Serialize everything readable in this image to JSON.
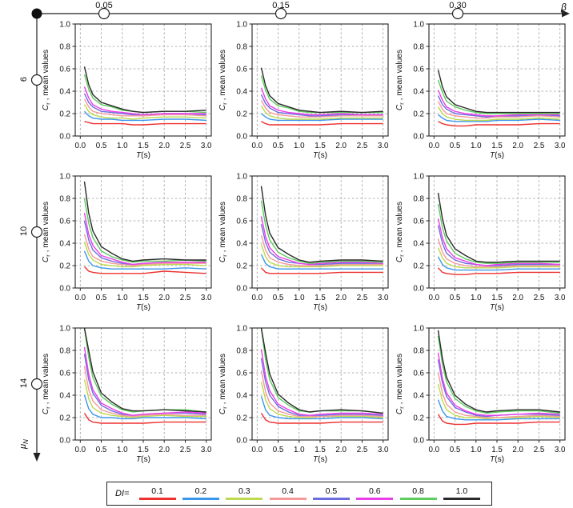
{
  "figure": {
    "beta_axis": {
      "label": "β",
      "values": [
        "0.05",
        "0.15",
        "0.30"
      ]
    },
    "mu_axis": {
      "label_sym": "μ",
      "label_sub": "N",
      "values": [
        "6",
        "10",
        "14"
      ]
    }
  },
  "legend": {
    "title": "DI=",
    "entries": [
      {
        "label": "0.1",
        "color": "#ee3030"
      },
      {
        "label": "0.2",
        "color": "#3d96ee"
      },
      {
        "label": "0.3",
        "color": "#bcd94f"
      },
      {
        "label": "0.4",
        "color": "#f59a9a"
      },
      {
        "label": "0.5",
        "color": "#6d6de0"
      },
      {
        "label": "0.6",
        "color": "#ea3fea"
      },
      {
        "label": "0.8",
        "color": "#5ecc5e"
      },
      {
        "label": "1.0",
        "color": "#2a2a2a"
      }
    ]
  },
  "chart_data": {
    "type": "line",
    "title": "",
    "xlabel": {
      "sym": "T",
      "rest": "(s)"
    },
    "ylabel": {
      "sym": "C",
      "sub": "r",
      "rest": " , mean values"
    },
    "xlim": [
      0,
      3.0
    ],
    "ylim": [
      0,
      1.0
    ],
    "xticks": [
      "0.0",
      "0.5",
      "1.0",
      "1.5",
      "2.0",
      "2.5",
      "3.0"
    ],
    "yticks": [
      "0.0",
      "0.2",
      "0.4",
      "0.6",
      "0.8",
      "1.0"
    ],
    "grid": "dashed",
    "legend_position": "bottom",
    "series_names": [
      "0.1",
      "0.2",
      "0.3",
      "0.4",
      "0.5",
      "0.6",
      "0.8",
      "1.0"
    ],
    "x": [
      0.1,
      0.2,
      0.3,
      0.5,
      0.75,
      1.0,
      1.25,
      1.5,
      2.0,
      2.5,
      3.0
    ],
    "subplots": [
      {
        "mu": "6",
        "beta": "0.05",
        "series": [
          [
            0.13,
            0.12,
            0.11,
            0.11,
            0.11,
            0.11,
            0.1,
            0.1,
            0.11,
            0.11,
            0.11
          ],
          [
            0.22,
            0.18,
            0.16,
            0.15,
            0.15,
            0.14,
            0.14,
            0.14,
            0.15,
            0.15,
            0.14
          ],
          [
            0.28,
            0.22,
            0.19,
            0.17,
            0.16,
            0.16,
            0.15,
            0.16,
            0.17,
            0.17,
            0.16
          ],
          [
            0.33,
            0.26,
            0.22,
            0.2,
            0.19,
            0.18,
            0.18,
            0.18,
            0.19,
            0.19,
            0.18
          ],
          [
            0.38,
            0.3,
            0.26,
            0.22,
            0.21,
            0.2,
            0.19,
            0.19,
            0.2,
            0.2,
            0.19
          ],
          [
            0.44,
            0.34,
            0.28,
            0.24,
            0.22,
            0.21,
            0.2,
            0.19,
            0.2,
            0.2,
            0.2
          ],
          [
            0.55,
            0.42,
            0.34,
            0.28,
            0.26,
            0.23,
            0.22,
            0.21,
            0.22,
            0.22,
            0.21
          ],
          [
            0.62,
            0.46,
            0.37,
            0.3,
            0.27,
            0.24,
            0.22,
            0.21,
            0.22,
            0.22,
            0.23
          ]
        ]
      },
      {
        "mu": "6",
        "beta": "0.15",
        "series": [
          [
            0.13,
            0.11,
            0.1,
            0.1,
            0.1,
            0.1,
            0.1,
            0.1,
            0.11,
            0.11,
            0.11
          ],
          [
            0.2,
            0.17,
            0.15,
            0.14,
            0.14,
            0.14,
            0.14,
            0.14,
            0.15,
            0.15,
            0.15
          ],
          [
            0.27,
            0.21,
            0.18,
            0.16,
            0.15,
            0.15,
            0.15,
            0.15,
            0.16,
            0.16,
            0.16
          ],
          [
            0.32,
            0.25,
            0.21,
            0.19,
            0.18,
            0.17,
            0.17,
            0.17,
            0.18,
            0.18,
            0.18
          ],
          [
            0.37,
            0.29,
            0.25,
            0.21,
            0.2,
            0.19,
            0.18,
            0.18,
            0.19,
            0.19,
            0.19
          ],
          [
            0.43,
            0.33,
            0.27,
            0.23,
            0.21,
            0.2,
            0.19,
            0.19,
            0.2,
            0.19,
            0.19
          ],
          [
            0.54,
            0.41,
            0.33,
            0.27,
            0.25,
            0.22,
            0.21,
            0.21,
            0.21,
            0.21,
            0.21
          ],
          [
            0.61,
            0.45,
            0.36,
            0.29,
            0.26,
            0.23,
            0.22,
            0.21,
            0.22,
            0.21,
            0.22
          ]
        ]
      },
      {
        "mu": "6",
        "beta": "0.30",
        "series": [
          [
            0.13,
            0.11,
            0.1,
            0.09,
            0.09,
            0.1,
            0.1,
            0.1,
            0.1,
            0.11,
            0.11
          ],
          [
            0.19,
            0.16,
            0.14,
            0.13,
            0.13,
            0.13,
            0.13,
            0.14,
            0.14,
            0.15,
            0.14
          ],
          [
            0.26,
            0.2,
            0.17,
            0.15,
            0.14,
            0.14,
            0.14,
            0.15,
            0.15,
            0.16,
            0.15
          ],
          [
            0.31,
            0.24,
            0.2,
            0.18,
            0.17,
            0.16,
            0.16,
            0.17,
            0.17,
            0.18,
            0.17
          ],
          [
            0.36,
            0.28,
            0.24,
            0.2,
            0.19,
            0.18,
            0.17,
            0.18,
            0.18,
            0.19,
            0.18
          ],
          [
            0.41,
            0.32,
            0.26,
            0.22,
            0.2,
            0.19,
            0.18,
            0.18,
            0.19,
            0.19,
            0.19
          ],
          [
            0.5,
            0.39,
            0.31,
            0.26,
            0.23,
            0.21,
            0.2,
            0.2,
            0.2,
            0.2,
            0.2
          ],
          [
            0.59,
            0.44,
            0.35,
            0.28,
            0.25,
            0.22,
            0.21,
            0.21,
            0.21,
            0.21,
            0.21
          ]
        ]
      },
      {
        "mu": "10",
        "beta": "0.05",
        "series": [
          [
            0.19,
            0.15,
            0.14,
            0.13,
            0.13,
            0.13,
            0.13,
            0.13,
            0.15,
            0.14,
            0.13
          ],
          [
            0.33,
            0.24,
            0.2,
            0.18,
            0.17,
            0.17,
            0.17,
            0.17,
            0.17,
            0.18,
            0.17
          ],
          [
            0.41,
            0.3,
            0.25,
            0.21,
            0.2,
            0.19,
            0.19,
            0.2,
            0.21,
            0.21,
            0.2
          ],
          [
            0.48,
            0.35,
            0.28,
            0.24,
            0.22,
            0.21,
            0.2,
            0.21,
            0.22,
            0.22,
            0.22
          ],
          [
            0.6,
            0.43,
            0.34,
            0.27,
            0.24,
            0.22,
            0.21,
            0.22,
            0.23,
            0.23,
            0.23
          ],
          [
            0.67,
            0.48,
            0.38,
            0.29,
            0.26,
            0.23,
            0.21,
            0.22,
            0.23,
            0.23,
            0.23
          ],
          [
            0.8,
            0.58,
            0.45,
            0.33,
            0.28,
            0.25,
            0.23,
            0.24,
            0.24,
            0.25,
            0.24
          ],
          [
            0.95,
            0.67,
            0.51,
            0.37,
            0.31,
            0.26,
            0.24,
            0.25,
            0.26,
            0.25,
            0.25
          ]
        ]
      },
      {
        "mu": "10",
        "beta": "0.15",
        "series": [
          [
            0.18,
            0.14,
            0.13,
            0.13,
            0.13,
            0.13,
            0.13,
            0.13,
            0.14,
            0.14,
            0.14
          ],
          [
            0.3,
            0.22,
            0.19,
            0.17,
            0.17,
            0.17,
            0.17,
            0.17,
            0.17,
            0.17,
            0.17
          ],
          [
            0.39,
            0.28,
            0.23,
            0.2,
            0.19,
            0.19,
            0.19,
            0.19,
            0.2,
            0.2,
            0.2
          ],
          [
            0.47,
            0.34,
            0.27,
            0.23,
            0.21,
            0.2,
            0.2,
            0.2,
            0.21,
            0.21,
            0.21
          ],
          [
            0.57,
            0.41,
            0.32,
            0.26,
            0.23,
            0.22,
            0.21,
            0.21,
            0.22,
            0.22,
            0.22
          ],
          [
            0.64,
            0.46,
            0.36,
            0.28,
            0.25,
            0.22,
            0.21,
            0.22,
            0.23,
            0.23,
            0.22
          ],
          [
            0.78,
            0.56,
            0.43,
            0.32,
            0.27,
            0.24,
            0.22,
            0.23,
            0.24,
            0.24,
            0.23
          ],
          [
            0.91,
            0.65,
            0.49,
            0.36,
            0.3,
            0.25,
            0.23,
            0.24,
            0.25,
            0.25,
            0.24
          ]
        ]
      },
      {
        "mu": "10",
        "beta": "0.30",
        "series": [
          [
            0.18,
            0.14,
            0.13,
            0.12,
            0.12,
            0.13,
            0.13,
            0.13,
            0.14,
            0.14,
            0.14
          ],
          [
            0.28,
            0.21,
            0.18,
            0.16,
            0.16,
            0.16,
            0.16,
            0.16,
            0.17,
            0.17,
            0.17
          ],
          [
            0.36,
            0.27,
            0.22,
            0.19,
            0.18,
            0.18,
            0.18,
            0.18,
            0.19,
            0.19,
            0.19
          ],
          [
            0.44,
            0.32,
            0.26,
            0.22,
            0.2,
            0.19,
            0.19,
            0.19,
            0.2,
            0.2,
            0.2
          ],
          [
            0.56,
            0.4,
            0.31,
            0.25,
            0.22,
            0.21,
            0.2,
            0.2,
            0.21,
            0.21,
            0.21
          ],
          [
            0.62,
            0.45,
            0.35,
            0.27,
            0.24,
            0.21,
            0.2,
            0.21,
            0.22,
            0.22,
            0.21
          ],
          [
            0.75,
            0.54,
            0.42,
            0.31,
            0.26,
            0.23,
            0.22,
            0.22,
            0.23,
            0.23,
            0.23
          ],
          [
            0.85,
            0.62,
            0.47,
            0.35,
            0.29,
            0.24,
            0.23,
            0.23,
            0.24,
            0.24,
            0.24
          ]
        ]
      },
      {
        "mu": "14",
        "beta": "0.05",
        "series": [
          [
            0.24,
            0.18,
            0.16,
            0.15,
            0.15,
            0.15,
            0.15,
            0.15,
            0.16,
            0.16,
            0.16
          ],
          [
            0.4,
            0.28,
            0.23,
            0.2,
            0.2,
            0.19,
            0.19,
            0.2,
            0.2,
            0.2,
            0.19
          ],
          [
            0.54,
            0.37,
            0.29,
            0.24,
            0.22,
            0.21,
            0.2,
            0.21,
            0.22,
            0.21,
            0.21
          ],
          [
            0.66,
            0.45,
            0.35,
            0.27,
            0.24,
            0.22,
            0.21,
            0.22,
            0.23,
            0.22,
            0.22
          ],
          [
            0.77,
            0.54,
            0.42,
            0.31,
            0.26,
            0.23,
            0.22,
            0.23,
            0.24,
            0.24,
            0.23
          ],
          [
            0.83,
            0.59,
            0.45,
            0.33,
            0.28,
            0.24,
            0.22,
            0.23,
            0.24,
            0.25,
            0.24
          ],
          [
            1.0,
            0.74,
            0.56,
            0.39,
            0.32,
            0.27,
            0.25,
            0.26,
            0.27,
            0.27,
            0.25
          ],
          [
            1.0,
            0.8,
            0.61,
            0.42,
            0.34,
            0.28,
            0.26,
            0.26,
            0.27,
            0.26,
            0.25
          ]
        ]
      },
      {
        "mu": "14",
        "beta": "0.15",
        "series": [
          [
            0.24,
            0.18,
            0.16,
            0.15,
            0.15,
            0.15,
            0.15,
            0.15,
            0.16,
            0.16,
            0.16
          ],
          [
            0.39,
            0.27,
            0.22,
            0.2,
            0.19,
            0.19,
            0.19,
            0.19,
            0.2,
            0.2,
            0.19
          ],
          [
            0.52,
            0.36,
            0.28,
            0.23,
            0.21,
            0.2,
            0.2,
            0.21,
            0.21,
            0.21,
            0.2
          ],
          [
            0.62,
            0.43,
            0.33,
            0.26,
            0.23,
            0.21,
            0.21,
            0.21,
            0.22,
            0.22,
            0.21
          ],
          [
            0.73,
            0.52,
            0.4,
            0.3,
            0.25,
            0.22,
            0.22,
            0.22,
            0.23,
            0.23,
            0.22
          ],
          [
            0.81,
            0.57,
            0.44,
            0.32,
            0.27,
            0.23,
            0.22,
            0.23,
            0.24,
            0.24,
            0.23
          ],
          [
            1.0,
            0.72,
            0.54,
            0.38,
            0.31,
            0.26,
            0.25,
            0.26,
            0.26,
            0.26,
            0.24
          ],
          [
            1.0,
            0.78,
            0.59,
            0.41,
            0.33,
            0.27,
            0.25,
            0.26,
            0.27,
            0.26,
            0.24
          ]
        ]
      },
      {
        "mu": "14",
        "beta": "0.30",
        "series": [
          [
            0.23,
            0.17,
            0.15,
            0.14,
            0.14,
            0.15,
            0.15,
            0.15,
            0.15,
            0.16,
            0.16
          ],
          [
            0.36,
            0.26,
            0.21,
            0.19,
            0.18,
            0.18,
            0.18,
            0.18,
            0.19,
            0.19,
            0.19
          ],
          [
            0.5,
            0.35,
            0.27,
            0.22,
            0.2,
            0.2,
            0.19,
            0.2,
            0.2,
            0.21,
            0.2
          ],
          [
            0.6,
            0.42,
            0.32,
            0.25,
            0.22,
            0.21,
            0.2,
            0.2,
            0.21,
            0.22,
            0.21
          ],
          [
            0.72,
            0.51,
            0.39,
            0.29,
            0.25,
            0.22,
            0.21,
            0.22,
            0.23,
            0.23,
            0.22
          ],
          [
            0.78,
            0.55,
            0.42,
            0.31,
            0.26,
            0.23,
            0.22,
            0.22,
            0.23,
            0.24,
            0.23
          ],
          [
            0.93,
            0.68,
            0.52,
            0.37,
            0.3,
            0.26,
            0.24,
            0.25,
            0.26,
            0.26,
            0.24
          ],
          [
            0.98,
            0.73,
            0.56,
            0.4,
            0.32,
            0.27,
            0.25,
            0.26,
            0.27,
            0.27,
            0.25
          ]
        ]
      }
    ]
  }
}
